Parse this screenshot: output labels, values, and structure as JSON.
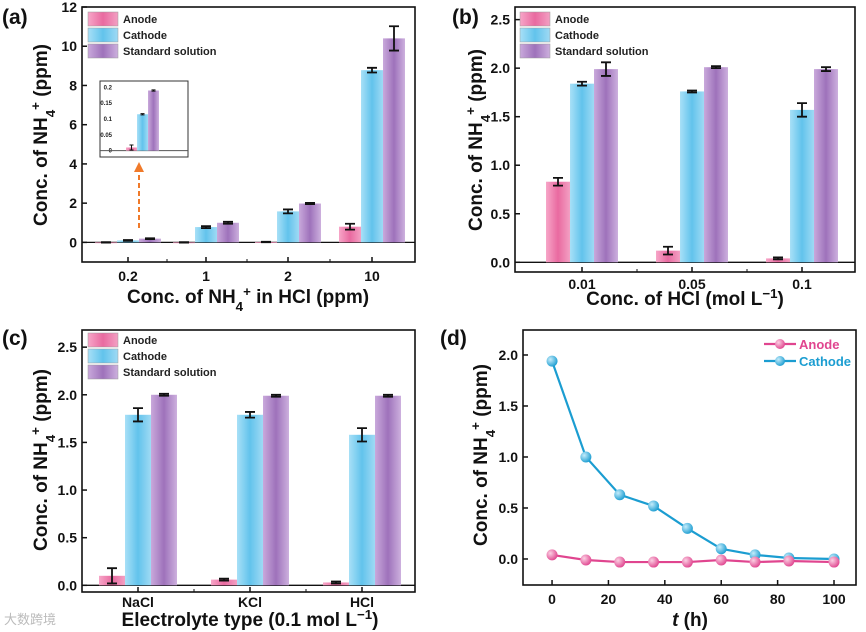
{
  "watermark": "大数跨境",
  "colors": {
    "anode": "#e96aa0",
    "cathode": "#6ec9ef",
    "standard": "#a87fc3",
    "line_anode": "#e0458f",
    "line_cathode": "#1b9dd1",
    "arrow": "#f07a2a"
  },
  "chart_data": [
    {
      "panel_label": "(a)",
      "type": "bar",
      "categories": [
        "0.2",
        "1",
        "2",
        "10"
      ],
      "series": [
        {
          "name": "Anode",
          "values": [
            0.0,
            0.0,
            0.02,
            0.8
          ],
          "errors": [
            0.01,
            0.01,
            0.01,
            0.15
          ]
        },
        {
          "name": "Cathode",
          "values": [
            0.1,
            0.78,
            1.58,
            8.78
          ],
          "errors": [
            0.02,
            0.05,
            0.1,
            0.12
          ]
        },
        {
          "name": "Standard solution",
          "values": [
            0.19,
            1.0,
            1.98,
            10.4
          ],
          "errors": [
            0.02,
            0.05,
            0.03,
            0.62
          ]
        }
      ],
      "xlabel": [
        {
          "t": "Conc. of NH"
        },
        {
          "t": "4",
          "sub": true
        },
        {
          "t": "+",
          "sup": true
        },
        {
          "t": " in HCl (ppm)"
        }
      ],
      "ylabel": [
        {
          "t": "Conc. of NH"
        },
        {
          "t": "4",
          "sub": true
        },
        {
          "t": "+",
          "sup": true
        },
        {
          "t": " (ppm)"
        }
      ],
      "ylim": [
        -1,
        12
      ],
      "yticks": [
        "0",
        "2",
        "4",
        "6",
        "8",
        "10",
        "12"
      ],
      "ytick_values": [
        0,
        2,
        4,
        6,
        8,
        10,
        12
      ],
      "legend": "top-left",
      "inset": {
        "category": "0.2",
        "values": [
          0.01,
          0.115,
          0.19
        ],
        "errors": [
          0.008,
          0.002,
          0.002
        ],
        "ylim": [
          -0.02,
          0.22
        ],
        "yticks": [
          "0",
          "0.05",
          "0.1",
          "0.15",
          "0.2"
        ],
        "ytick_values": [
          0,
          0.05,
          0.1,
          0.15,
          0.2
        ]
      }
    },
    {
      "panel_label": "(b)",
      "type": "bar",
      "categories": [
        "0.01",
        "0.05",
        "0.1"
      ],
      "series": [
        {
          "name": "Anode",
          "values": [
            0.83,
            0.12,
            0.04
          ],
          "errors": [
            0.04,
            0.04,
            0.01
          ]
        },
        {
          "name": "Cathode",
          "values": [
            1.84,
            1.76,
            1.57
          ],
          "errors": [
            0.02,
            0.01,
            0.07
          ]
        },
        {
          "name": "Standard solution",
          "values": [
            1.99,
            2.01,
            1.99
          ],
          "errors": [
            0.07,
            0.01,
            0.02
          ]
        }
      ],
      "xlabel": [
        {
          "t": "Conc. of HCl (mol L"
        },
        {
          "t": "−1",
          "sup": true
        },
        {
          "t": ")"
        }
      ],
      "ylabel": [
        {
          "t": "Conc. of NH"
        },
        {
          "t": "4",
          "sub": true
        },
        {
          "t": "+",
          "sup": true
        },
        {
          "t": " (ppm)"
        }
      ],
      "ylim": [
        -0.1,
        2.63
      ],
      "yticks": [
        "0.0",
        "0.5",
        "1.0",
        "1.5",
        "2.0",
        "2.5"
      ],
      "ytick_values": [
        0,
        0.5,
        1,
        1.5,
        2,
        2.5
      ],
      "legend": "top-left"
    },
    {
      "panel_label": "(c)",
      "type": "bar",
      "categories": [
        "NaCl",
        "KCl",
        "HCl"
      ],
      "series": [
        {
          "name": "Anode",
          "values": [
            0.1,
            0.06,
            0.03
          ],
          "errors": [
            0.08,
            0.01,
            0.01
          ]
        },
        {
          "name": "Cathode",
          "values": [
            1.79,
            1.79,
            1.58
          ],
          "errors": [
            0.07,
            0.03,
            0.07
          ]
        },
        {
          "name": "Standard solution",
          "values": [
            2.0,
            1.99,
            1.99
          ],
          "errors": [
            0.01,
            0.01,
            0.01
          ]
        }
      ],
      "xlabel": [
        {
          "t": "Electrolyte type (0.1 mol L"
        },
        {
          "t": "−1",
          "sup": true
        },
        {
          "t": ")"
        }
      ],
      "ylabel": [
        {
          "t": "Conc. of NH"
        },
        {
          "t": "4",
          "sub": true
        },
        {
          "t": "+",
          "sup": true
        },
        {
          "t": " (ppm)"
        }
      ],
      "ylim": [
        -0.07,
        2.68
      ],
      "yticks": [
        "0.0",
        "0.5",
        "1.0",
        "1.5",
        "2.0",
        "2.5"
      ],
      "ytick_values": [
        0,
        0.5,
        1,
        1.5,
        2,
        2.5
      ],
      "legend": "top-left"
    },
    {
      "panel_label": "(d)",
      "type": "line",
      "x": [
        0,
        12,
        24,
        36,
        48,
        60,
        72,
        84,
        100
      ],
      "series": [
        {
          "name": "Anode",
          "values": [
            0.04,
            -0.01,
            -0.03,
            -0.03,
            -0.03,
            -0.01,
            -0.03,
            -0.02,
            -0.03
          ]
        },
        {
          "name": "Cathode",
          "values": [
            1.94,
            1.0,
            0.63,
            0.52,
            0.3,
            0.1,
            0.04,
            0.01,
            0.0
          ]
        }
      ],
      "xlabel": [
        {
          "t": "t",
          "it": true
        },
        {
          "t": " (h)"
        }
      ],
      "ylabel": [
        {
          "t": "Conc. of NH"
        },
        {
          "t": "4",
          "sub": true
        },
        {
          "t": "+",
          "sup": true
        },
        {
          "t": " (ppm)"
        }
      ],
      "xlim": [
        -10.3,
        107.8
      ],
      "xticks": [
        "0",
        "20",
        "40",
        "60",
        "80",
        "100"
      ],
      "xtick_values": [
        0,
        20,
        40,
        60,
        80,
        100
      ],
      "ylim": [
        -0.255,
        2.245
      ],
      "yticks": [
        "0.0",
        "0.5",
        "1.0",
        "1.5",
        "2.0"
      ],
      "ytick_values": [
        0,
        0.5,
        1,
        1.5,
        2
      ],
      "legend": "top-right"
    }
  ]
}
